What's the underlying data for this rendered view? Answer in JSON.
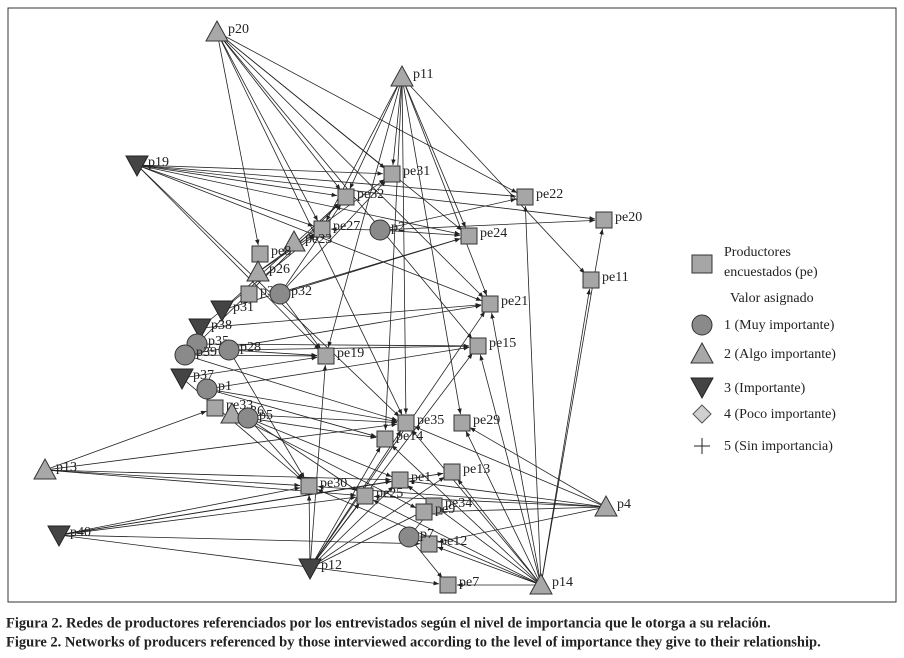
{
  "nodes": [
    {
      "label": "p20"
    },
    {
      "label": "p11"
    },
    {
      "label": "p19"
    },
    {
      "label": "pe31"
    },
    {
      "label": "pe32"
    },
    {
      "label": "pe22"
    },
    {
      "label": "pe20"
    },
    {
      "label": "pe27"
    },
    {
      "label": "pe23"
    },
    {
      "label": "p2"
    },
    {
      "label": "pe24"
    },
    {
      "label": "pe8"
    },
    {
      "label": "p26"
    },
    {
      "label": "pe11"
    },
    {
      "label": "p30"
    },
    {
      "label": "p32"
    },
    {
      "label": "pe21"
    },
    {
      "label": "p31"
    },
    {
      "label": "p38"
    },
    {
      "label": "p35"
    },
    {
      "label": "p28"
    },
    {
      "label": "pe19"
    },
    {
      "label": "pe15"
    },
    {
      "label": "p39"
    },
    {
      "label": "p37"
    },
    {
      "label": "p1"
    },
    {
      "label": "pe33"
    },
    {
      "label": "p36"
    },
    {
      "label": "p5"
    },
    {
      "label": "pe35"
    },
    {
      "label": "pe29"
    },
    {
      "label": "pe14"
    },
    {
      "label": "p13"
    },
    {
      "label": "pe1"
    },
    {
      "label": "pe13"
    },
    {
      "label": "pe30"
    },
    {
      "label": "pe25"
    },
    {
      "label": "pe34"
    },
    {
      "label": "pe9"
    },
    {
      "label": "pe12"
    },
    {
      "label": "p7"
    },
    {
      "label": "p4"
    },
    {
      "label": "p40"
    },
    {
      "label": "p12"
    },
    {
      "label": "pe7"
    },
    {
      "label": "p14"
    }
  ],
  "legend": {
    "surveyed": [
      "Productores",
      "encuestados (pe)"
    ],
    "heading": "Valor asignado",
    "items": [
      "1 (Muy importante)",
      "2 (Algo importante)",
      "3 (Importante)",
      "4 (Poco importante)",
      "5 (Sin importancia)"
    ]
  },
  "caption": [
    "Figura 2. Redes de productores referenciados por los entrevistados según el nivel de importancia que le otorga a su relación.",
    "Figure 2. Networks of producers referenced by those interviewed according to the level of importance they give to their relationship."
  ]
}
